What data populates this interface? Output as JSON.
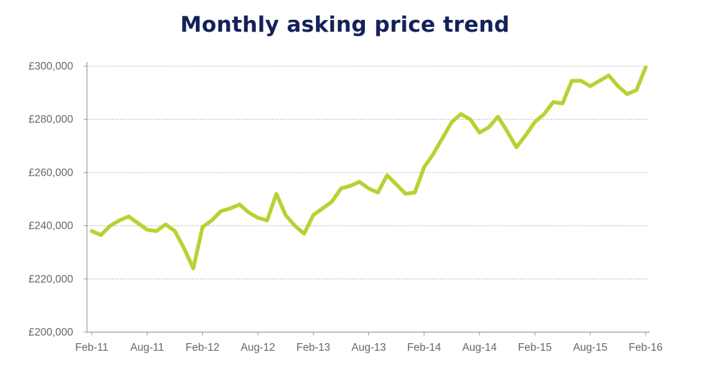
{
  "chart_data": {
    "type": "line",
    "title": "Monthly asking price trend",
    "xlabel": "",
    "ylabel": "",
    "x_tick_labels": [
      "Feb-11",
      "Aug-11",
      "Feb-12",
      "Aug-12",
      "Feb-13",
      "Aug-13",
      "Feb-14",
      "Aug-14",
      "Feb-15",
      "Aug-15",
      "Feb-16"
    ],
    "y_tick_labels": [
      "£200,000",
      "£220,000",
      "£240,000",
      "£260,000",
      "£280,000",
      "£300,000"
    ],
    "ylim": [
      200000,
      300000
    ],
    "y_ticks": [
      200000,
      220000,
      240000,
      260000,
      280000,
      300000
    ],
    "grid": "horizontal dotted",
    "legend": "none",
    "line_color": "#b5d334",
    "x_months": [
      "2011-02",
      "2011-03",
      "2011-04",
      "2011-05",
      "2011-06",
      "2011-07",
      "2011-08",
      "2011-09",
      "2011-10",
      "2011-11",
      "2011-12",
      "2012-01",
      "2012-02",
      "2012-03",
      "2012-04",
      "2012-05",
      "2012-06",
      "2012-07",
      "2012-08",
      "2012-09",
      "2012-10",
      "2012-11",
      "2012-12",
      "2013-01",
      "2013-02",
      "2013-03",
      "2013-04",
      "2013-05",
      "2013-06",
      "2013-07",
      "2013-08",
      "2013-09",
      "2013-10",
      "2013-11",
      "2013-12",
      "2014-01",
      "2014-02",
      "2014-03",
      "2014-04",
      "2014-05",
      "2014-06",
      "2014-07",
      "2014-08",
      "2014-09",
      "2014-10",
      "2014-11",
      "2014-12",
      "2015-01",
      "2015-02",
      "2015-03",
      "2015-04",
      "2015-05",
      "2015-06",
      "2015-07",
      "2015-08",
      "2015-09",
      "2015-10",
      "2015-11",
      "2015-12",
      "2016-01",
      "2016-02"
    ],
    "series": [
      {
        "values": [
          238000,
          236500,
          240000,
          242000,
          243500,
          241000,
          238500,
          238000,
          240500,
          238000,
          231500,
          224000,
          239500,
          242000,
          245500,
          246500,
          248000,
          245000,
          243000,
          242000,
          252000,
          244000,
          240000,
          237000,
          244000,
          246500,
          249000,
          254000,
          255000,
          256500,
          254000,
          252500,
          259000,
          255500,
          252000,
          252500,
          262000,
          267000,
          273000,
          279000,
          282000,
          280000,
          275000,
          277000,
          281000,
          275500,
          269500,
          274000,
          279000,
          282000,
          286500,
          286000,
          294500,
          294500,
          292500,
          294500,
          296500,
          292500,
          289500,
          291000,
          299500
        ]
      }
    ]
  }
}
